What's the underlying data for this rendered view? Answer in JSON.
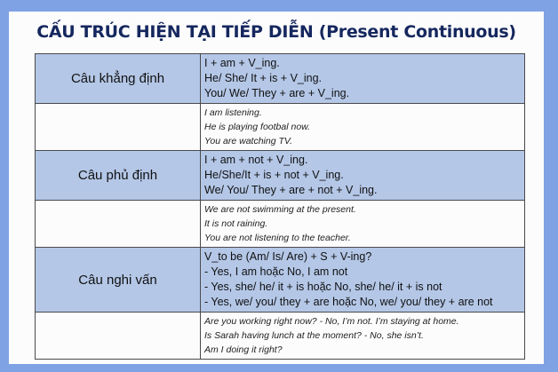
{
  "title": "CẤU TRÚC HIỆN TẠI TIẾP DIỄN (Present Continuous)",
  "rows": [
    {
      "label": "Câu khẳng định",
      "type": "formula",
      "lines": [
        "I + am + V_ing.",
        "He/ She/ It + is + V_ing.",
        "You/ We/ They + are + V_ing."
      ]
    },
    {
      "label": "",
      "type": "example",
      "lines": [
        "I am listening.",
        "He is playing footbal now.",
        "You are watching TV."
      ]
    },
    {
      "label": "Câu phủ định",
      "type": "formula",
      "lines": [
        "I + am + not + V_ing.",
        "He/She/It + is + not + V_ing.",
        "We/ You/ They + are + not + V_ing."
      ]
    },
    {
      "label": "",
      "type": "example",
      "lines": [
        "We are not swimming at the present.",
        "It is not raining.",
        "You are not listening to the teacher."
      ]
    },
    {
      "label": "Câu nghi vấn",
      "type": "formula",
      "lines": [
        "V_to be (Am/ Is/ Are) + S + V-ing?",
        "- Yes, I am hoặc No, I am not",
        "- Yes, she/ he/ it + is hoặc No, she/ he/ it + is not",
        "- Yes, we/ you/ they + are hoặc No, we/ you/ they + are not"
      ]
    },
    {
      "label": "",
      "type": "example",
      "lines": [
        "Are you working right now? - No, I’m not. I’m staying at home.",
        "Is Sarah having lunch at the moment? - No, she isn’t.",
        "Am I doing it right?"
      ]
    }
  ],
  "colors": {
    "background": "#7fa2e4",
    "header_fill": "#b4c7e7",
    "title": "#15275e"
  }
}
